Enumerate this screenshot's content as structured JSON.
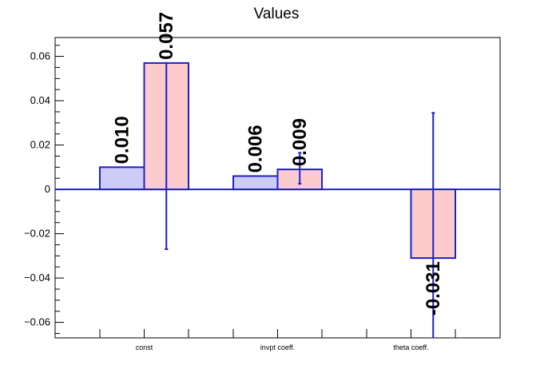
{
  "chart_data": {
    "type": "bar",
    "title": "Values",
    "xlabel": "",
    "ylabel": "",
    "categories": [
      "const",
      "invpt coeff.",
      "theta coeff."
    ],
    "ylim": [
      -0.067,
      0.0685
    ],
    "yticks": [
      -0.06,
      -0.04,
      -0.02,
      0,
      0.02,
      0.04,
      0.06
    ],
    "ytick_labels": [
      "−0.06",
      "−0.04",
      "−0.02",
      "0",
      "0.02",
      "0.04",
      "0.06"
    ],
    "grid": false,
    "series": [
      {
        "values": [
          0.01,
          0.006,
          null
        ],
        "labels": [
          "0.010",
          "0.006",
          ""
        ],
        "errors": [
          null,
          null,
          null
        ],
        "fill": "#ccccf7",
        "stroke": "#1f1fcc"
      },
      {
        "values": [
          0.057,
          0.009,
          -0.031
        ],
        "labels": [
          "0.057",
          "0.009",
          "-0.031"
        ],
        "errors": [
          [
            -0.027,
            0.057
          ],
          [
            0.0025,
            0.0165
          ],
          [
            -0.067,
            0.0345
          ]
        ],
        "fill": "#fccccc",
        "stroke": "#1f1fcc"
      }
    ],
    "colors": {
      "axis": "#000000",
      "zero_line": "#1f1fcc",
      "error_bar": "#1f1fcc"
    }
  }
}
